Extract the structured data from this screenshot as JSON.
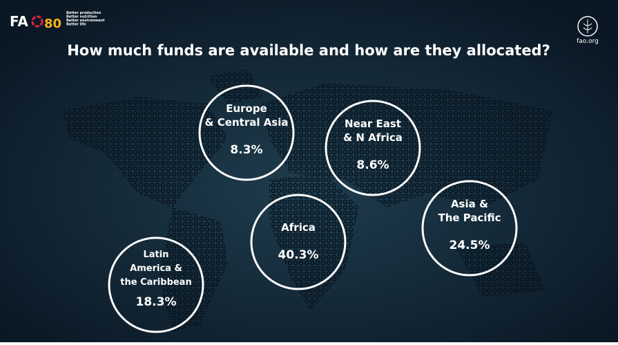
{
  "header": {
    "logo_text": "FA",
    "logo_number": "80",
    "tagline": [
      "Better production",
      "Better nutrition",
      "Better environment",
      "Better life"
    ],
    "site": "fao.org"
  },
  "title": "How much funds are available and how are they allocated?",
  "regions": [
    {
      "label": [
        "Europe",
        "& Central Asia"
      ],
      "value": "8.3%"
    },
    {
      "label": [
        "Near East",
        "& N Africa"
      ],
      "value": "8.6%"
    },
    {
      "label": [
        "Africa"
      ],
      "value": "40.3%"
    },
    {
      "label": [
        "Asia &",
        "The Pacific"
      ],
      "value": "24.5%"
    },
    {
      "label": [
        "Latin",
        "America &",
        "the Caribbean"
      ],
      "value": "18.3%"
    }
  ]
}
